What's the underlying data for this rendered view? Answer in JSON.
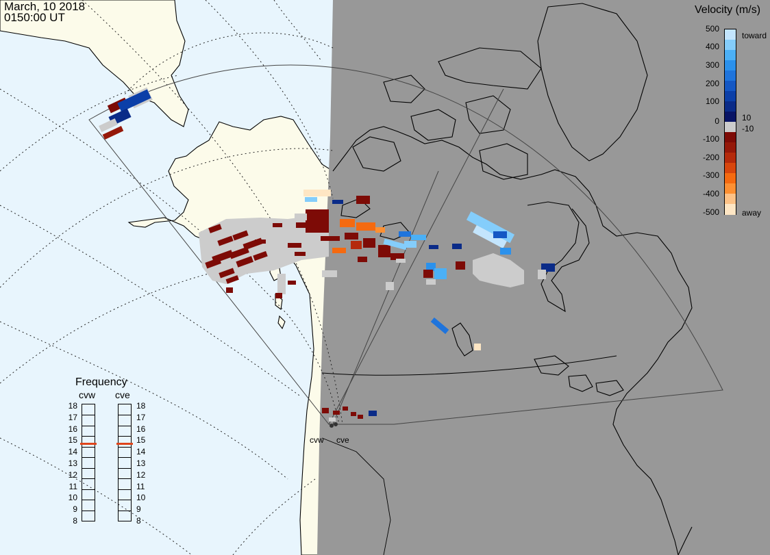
{
  "header": {
    "date": "March, 10 2018",
    "time": "0150:00 UT"
  },
  "legend": {
    "title": "Velocity (m/s)",
    "tick_labels": [
      "500",
      "400",
      "300",
      "200",
      "100",
      "10",
      "0",
      "-10",
      "-100",
      "-200",
      "-300",
      "-400",
      "-500"
    ],
    "toward_label": "toward",
    "away_label": "away",
    "scale_colors": [
      "#fee6c4",
      "#fdc287",
      "#fd9033",
      "#f56a10",
      "#d8460d",
      "#b52a0b",
      "#951809",
      "#7d0b06",
      "#cccccc",
      "#081465",
      "#0a2b88",
      "#0b3fa8",
      "#1457c4",
      "#1f74dc",
      "#2b91ec",
      "#4bb0f6",
      "#84cdfb",
      "#c3e5fd"
    ]
  },
  "frequency_panel": {
    "title": "Frequency",
    "radars": [
      {
        "name": "cvw",
        "selected_mhz": 15
      },
      {
        "name": "cve",
        "selected_mhz": 15
      }
    ],
    "scale_mhz": [
      "18",
      "17",
      "16",
      "15",
      "14",
      "13",
      "12",
      "11",
      "10",
      "9",
      "8"
    ],
    "marker_color": "#e0441a"
  },
  "map": {
    "radar_labels": [
      "cvw",
      "cve"
    ],
    "ocean_color": "#e8f5fd",
    "land_color": "#fcfbea",
    "night_color": "#989898"
  }
}
